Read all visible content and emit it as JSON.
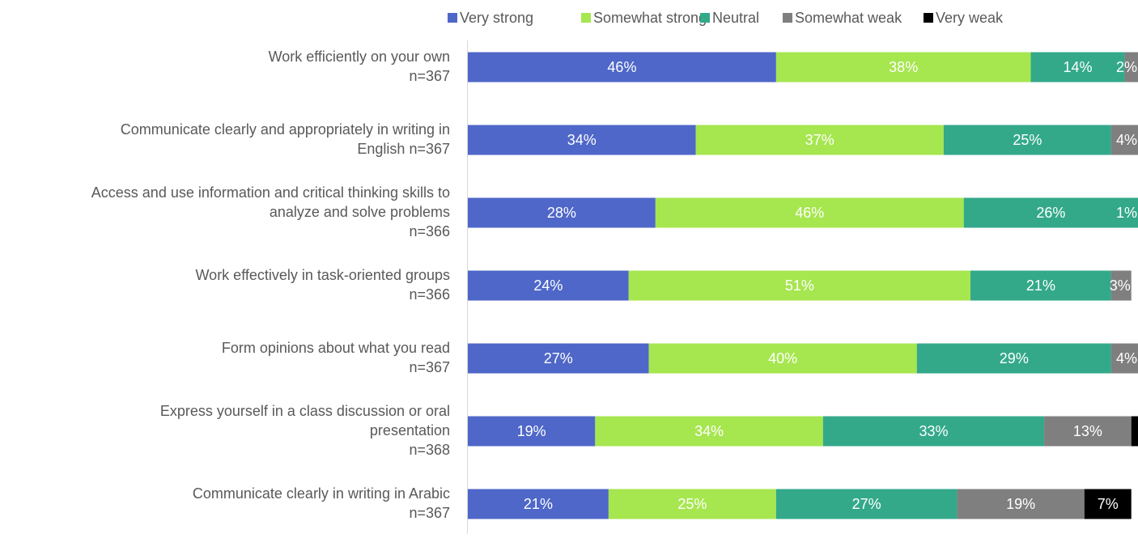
{
  "chart_data": {
    "type": "stacked-bar-horizontal",
    "categories": [
      [
        "Work efficiently on your own",
        "n=367"
      ],
      [
        "Communicate clearly and appropriately in writing in",
        "English n=367"
      ],
      [
        "Access and use information and critical thinking skills to",
        "analyze and solve problems",
        "n=366"
      ],
      [
        "Work effectively in task-oriented groups",
        "n=366"
      ],
      [
        "Form opinions about what you read",
        "n=367"
      ],
      [
        "Express yourself in a class discussion or oral",
        "presentation",
        "n=368"
      ],
      [
        "Communicate clearly in writing in Arabic",
        "n=367"
      ]
    ],
    "xlim": [
      0,
      100
    ],
    "legend": "top-right",
    "series": [
      {
        "name": "Very strong",
        "color": "#4f67c8",
        "values": [
          46,
          34,
          28,
          24,
          27,
          19,
          21
        ],
        "value_labels": [
          "46%",
          "34%",
          "28%",
          "24%",
          "27%",
          "19%",
          "21%"
        ]
      },
      {
        "name": "Somewhat strong",
        "color": "#a6e64f",
        "values": [
          38,
          37,
          46,
          51,
          40,
          34,
          25
        ],
        "value_labels": [
          "38%",
          "37%",
          "46%",
          "51%",
          "40%",
          "34%",
          "25%"
        ]
      },
      {
        "name": "Neutral",
        "color": "#33a98a",
        "values": [
          14,
          25,
          26,
          21,
          29,
          33,
          27
        ],
        "value_labels": [
          "14%",
          "25%",
          "26%",
          "21%",
          "29%",
          "33%",
          "27%"
        ]
      },
      {
        "name": "Somewhat weak",
        "color": "#7f7f7f",
        "values": [
          2,
          4,
          1,
          3,
          4,
          13,
          19
        ],
        "value_labels": [
          "2%",
          "4%",
          "1%",
          "3%",
          "4%",
          "13%",
          "19%"
        ]
      },
      {
        "name": "Very weak",
        "color": "#000000",
        "values": [
          0,
          0,
          0,
          0,
          0,
          1,
          7
        ],
        "value_labels": [
          null,
          null,
          null,
          null,
          null,
          null,
          "7%"
        ]
      }
    ]
  }
}
